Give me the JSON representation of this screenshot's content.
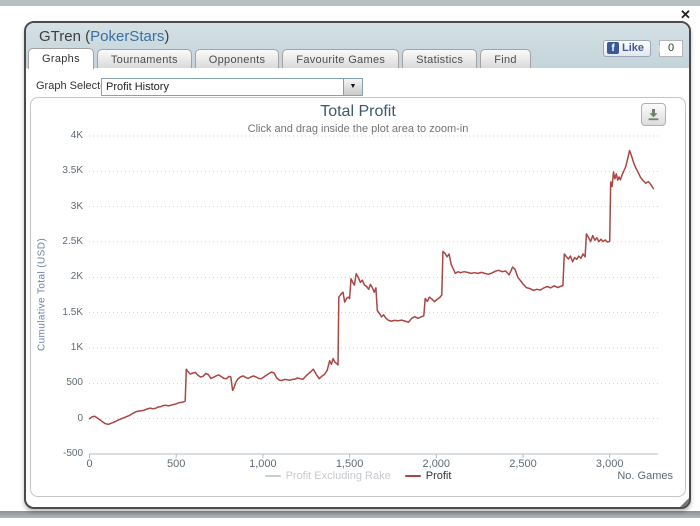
{
  "page": {
    "close_icon": "✕"
  },
  "window": {
    "title_name": "GTren (",
    "title_site": "PokerStars",
    "title_close": ")"
  },
  "tabs": [
    {
      "label": "Graphs",
      "active": true
    },
    {
      "label": "Tournaments",
      "active": false
    },
    {
      "label": "Opponents",
      "active": false
    },
    {
      "label": "Favourite Games",
      "active": false
    },
    {
      "label": "Statistics",
      "active": false
    },
    {
      "label": "Find",
      "active": false
    }
  ],
  "like_widget": {
    "facebook_icon": "f",
    "label": "Like",
    "count": "0"
  },
  "graph_selector": {
    "label": "Graph Selected:",
    "value": "Profit History",
    "dropdown_arrow_icon": "▼"
  },
  "icons": {
    "close": "✕",
    "dropdown_arrow": "▼",
    "facebook_f": "f",
    "download": "⭳"
  },
  "chart_data": {
    "type": "line",
    "title": "Total Profit",
    "subtitle": "Click and drag inside the plot area to zoom-in",
    "xlabel": "No. Games",
    "ylabel": "Cumulative Total (USD)",
    "xlim": [
      0,
      3270
    ],
    "ylim": [
      -500,
      4000
    ],
    "grid": "dotted-horizontal",
    "legend_position": "bottom-center",
    "x_ticks": [
      {
        "v": 0,
        "label": "0"
      },
      {
        "v": 500,
        "label": "500"
      },
      {
        "v": 1000,
        "label": "1,000"
      },
      {
        "v": 1500,
        "label": "1,500"
      },
      {
        "v": 2000,
        "label": "2,000"
      },
      {
        "v": 2500,
        "label": "2,500"
      },
      {
        "v": 3000,
        "label": "3,000"
      }
    ],
    "y_ticks": [
      {
        "v": -500,
        "label": "-500"
      },
      {
        "v": 0,
        "label": "0"
      },
      {
        "v": 500,
        "label": "500"
      },
      {
        "v": 1000,
        "label": "1K"
      },
      {
        "v": 1500,
        "label": "1.5K"
      },
      {
        "v": 2000,
        "label": "2K"
      },
      {
        "v": 2500,
        "label": "2.5K"
      },
      {
        "v": 3000,
        "label": "3K"
      },
      {
        "v": 3500,
        "label": "3.5K"
      },
      {
        "v": 4000,
        "label": "4K"
      }
    ],
    "legend": [
      {
        "name": "Profit Excluding Rake",
        "color": "#c9ccd0",
        "text_color": "#c6c9cd",
        "hidden": true
      },
      {
        "name": "Profit",
        "color": "#aa4643",
        "text_color": "#333333",
        "hidden": false
      }
    ],
    "series": [
      {
        "name": "Profit",
        "color": "#aa4643",
        "hidden": false,
        "points": [
          [
            0,
            0
          ],
          [
            15,
            25
          ],
          [
            30,
            35
          ],
          [
            45,
            10
          ],
          [
            60,
            -15
          ],
          [
            75,
            -45
          ],
          [
            90,
            -70
          ],
          [
            110,
            -80
          ],
          [
            130,
            -60
          ],
          [
            150,
            -40
          ],
          [
            170,
            -15
          ],
          [
            190,
            5
          ],
          [
            210,
            25
          ],
          [
            230,
            45
          ],
          [
            250,
            75
          ],
          [
            270,
            100
          ],
          [
            290,
            110
          ],
          [
            310,
            115
          ],
          [
            330,
            135
          ],
          [
            350,
            150
          ],
          [
            365,
            140
          ],
          [
            380,
            145
          ],
          [
            395,
            165
          ],
          [
            410,
            170
          ],
          [
            425,
            185
          ],
          [
            440,
            190
          ],
          [
            455,
            180
          ],
          [
            470,
            190
          ],
          [
            485,
            200
          ],
          [
            500,
            210
          ],
          [
            515,
            225
          ],
          [
            530,
            230
          ],
          [
            545,
            240
          ],
          [
            552,
            250
          ],
          [
            558,
            700
          ],
          [
            570,
            660
          ],
          [
            582,
            630
          ],
          [
            595,
            645
          ],
          [
            610,
            655
          ],
          [
            625,
            615
          ],
          [
            640,
            590
          ],
          [
            655,
            600
          ],
          [
            670,
            640
          ],
          [
            685,
            625
          ],
          [
            700,
            570
          ],
          [
            715,
            585
          ],
          [
            730,
            605
          ],
          [
            745,
            620
          ],
          [
            760,
            595
          ],
          [
            775,
            570
          ],
          [
            790,
            565
          ],
          [
            805,
            600
          ],
          [
            815,
            590
          ],
          [
            825,
            400
          ],
          [
            835,
            450
          ],
          [
            845,
            520
          ],
          [
            855,
            560
          ],
          [
            870,
            590
          ],
          [
            885,
            605
          ],
          [
            900,
            585
          ],
          [
            915,
            570
          ],
          [
            930,
            590
          ],
          [
            945,
            605
          ],
          [
            960,
            590
          ],
          [
            975,
            570
          ],
          [
            990,
            565
          ],
          [
            1005,
            590
          ],
          [
            1020,
            615
          ],
          [
            1035,
            640
          ],
          [
            1050,
            660
          ],
          [
            1065,
            645
          ],
          [
            1080,
            575
          ],
          [
            1095,
            545
          ],
          [
            1110,
            540
          ],
          [
            1125,
            555
          ],
          [
            1140,
            550
          ],
          [
            1155,
            545
          ],
          [
            1170,
            555
          ],
          [
            1185,
            560
          ],
          [
            1200,
            575
          ],
          [
            1215,
            565
          ],
          [
            1230,
            555
          ],
          [
            1245,
            595
          ],
          [
            1260,
            630
          ],
          [
            1275,
            660
          ],
          [
            1290,
            700
          ],
          [
            1300,
            660
          ],
          [
            1310,
            620
          ],
          [
            1325,
            565
          ],
          [
            1340,
            600
          ],
          [
            1355,
            625
          ],
          [
            1370,
            680
          ],
          [
            1385,
            820
          ],
          [
            1395,
            770
          ],
          [
            1405,
            850
          ],
          [
            1415,
            800
          ],
          [
            1425,
            780
          ],
          [
            1433,
            760
          ],
          [
            1438,
            1720
          ],
          [
            1450,
            1760
          ],
          [
            1462,
            1790
          ],
          [
            1472,
            1650
          ],
          [
            1482,
            1700
          ],
          [
            1492,
            1720
          ],
          [
            1500,
            1700
          ],
          [
            1508,
            1980
          ],
          [
            1518,
            1930
          ],
          [
            1528,
            1890
          ],
          [
            1538,
            2050
          ],
          [
            1550,
            2000
          ],
          [
            1562,
            1930
          ],
          [
            1574,
            1960
          ],
          [
            1586,
            1890
          ],
          [
            1598,
            1870
          ],
          [
            1610,
            1830
          ],
          [
            1620,
            1900
          ],
          [
            1632,
            1850
          ],
          [
            1642,
            1790
          ],
          [
            1652,
            1850
          ],
          [
            1660,
            1530
          ],
          [
            1672,
            1490
          ],
          [
            1684,
            1440
          ],
          [
            1696,
            1470
          ],
          [
            1710,
            1420
          ],
          [
            1725,
            1390
          ],
          [
            1740,
            1380
          ],
          [
            1760,
            1390
          ],
          [
            1780,
            1385
          ],
          [
            1800,
            1395
          ],
          [
            1820,
            1380
          ],
          [
            1840,
            1365
          ],
          [
            1858,
            1420
          ],
          [
            1876,
            1445
          ],
          [
            1894,
            1420
          ],
          [
            1912,
            1440
          ],
          [
            1928,
            1455
          ],
          [
            1936,
            1700
          ],
          [
            1948,
            1660
          ],
          [
            1960,
            1720
          ],
          [
            1975,
            1690
          ],
          [
            1990,
            1655
          ],
          [
            2005,
            1690
          ],
          [
            2020,
            1715
          ],
          [
            2032,
            1750
          ],
          [
            2038,
            2365
          ],
          [
            2050,
            2340
          ],
          [
            2062,
            2290
          ],
          [
            2074,
            2330
          ],
          [
            2086,
            2180
          ],
          [
            2098,
            2120
          ],
          [
            2110,
            2055
          ],
          [
            2125,
            2080
          ],
          [
            2140,
            2065
          ],
          [
            2160,
            2080
          ],
          [
            2180,
            2070
          ],
          [
            2200,
            2055
          ],
          [
            2220,
            2065
          ],
          [
            2240,
            2055
          ],
          [
            2260,
            2070
          ],
          [
            2280,
            2055
          ],
          [
            2300,
            2045
          ],
          [
            2320,
            2060
          ],
          [
            2340,
            2085
          ],
          [
            2360,
            2100
          ],
          [
            2380,
            2080
          ],
          [
            2400,
            2090
          ],
          [
            2420,
            2035
          ],
          [
            2440,
            2145
          ],
          [
            2455,
            2110
          ],
          [
            2470,
            2000
          ],
          [
            2485,
            1955
          ],
          [
            2500,
            1905
          ],
          [
            2520,
            1855
          ],
          [
            2540,
            1840
          ],
          [
            2560,
            1815
          ],
          [
            2580,
            1830
          ],
          [
            2600,
            1820
          ],
          [
            2620,
            1850
          ],
          [
            2640,
            1870
          ],
          [
            2660,
            1850
          ],
          [
            2680,
            1880
          ],
          [
            2700,
            1855
          ],
          [
            2715,
            1870
          ],
          [
            2730,
            1885
          ],
          [
            2738,
            2330
          ],
          [
            2750,
            2295
          ],
          [
            2762,
            2260
          ],
          [
            2774,
            2300
          ],
          [
            2786,
            2220
          ],
          [
            2798,
            2280
          ],
          [
            2810,
            2255
          ],
          [
            2822,
            2300
          ],
          [
            2834,
            2270
          ],
          [
            2846,
            2330
          ],
          [
            2858,
            2290
          ],
          [
            2866,
            2615
          ],
          [
            2878,
            2565
          ],
          [
            2890,
            2505
          ],
          [
            2902,
            2590
          ],
          [
            2914,
            2525
          ],
          [
            2926,
            2560
          ],
          [
            2938,
            2505
          ],
          [
            2950,
            2540
          ],
          [
            2962,
            2505
          ],
          [
            2974,
            2530
          ],
          [
            2986,
            2500
          ],
          [
            3000,
            2510
          ],
          [
            3006,
            3350
          ],
          [
            3014,
            3285
          ],
          [
            3022,
            3490
          ],
          [
            3030,
            3395
          ],
          [
            3038,
            3465
          ],
          [
            3046,
            3375
          ],
          [
            3054,
            3420
          ],
          [
            3062,
            3380
          ],
          [
            3070,
            3440
          ],
          [
            3080,
            3500
          ],
          [
            3092,
            3560
          ],
          [
            3104,
            3680
          ],
          [
            3115,
            3795
          ],
          [
            3127,
            3710
          ],
          [
            3139,
            3615
          ],
          [
            3151,
            3545
          ],
          [
            3163,
            3490
          ],
          [
            3178,
            3415
          ],
          [
            3193,
            3370
          ],
          [
            3208,
            3330
          ],
          [
            3223,
            3355
          ],
          [
            3238,
            3310
          ],
          [
            3252,
            3255
          ]
        ]
      }
    ]
  }
}
